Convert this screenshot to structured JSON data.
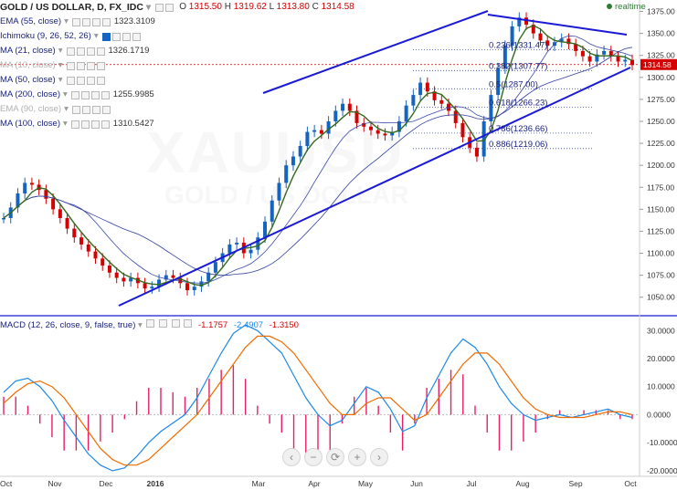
{
  "header": {
    "symbol": "GOLD / US DOLLAR, D, FX_IDC",
    "open_label": "O",
    "open": "1315.50",
    "high_label": "H",
    "high": "1319.62",
    "low_label": "L",
    "low": "1313.80",
    "close_label": "C",
    "close": "1314.58",
    "realtime": "realtime"
  },
  "indicators": [
    {
      "label": "EMA (55, close)",
      "value": "1323.3109",
      "dim": false
    },
    {
      "label": "Ichimoku (9, 26, 52, 26)",
      "value": "",
      "dim": false
    },
    {
      "label": "MA (21, close)",
      "value": "1326.1719",
      "dim": false
    },
    {
      "label": "MA (10, close)",
      "value": "",
      "dim": true
    },
    {
      "label": "MA (50, close)",
      "value": "",
      "dim": false
    },
    {
      "label": "MA (200, close)",
      "value": "1255.9985",
      "dim": false
    },
    {
      "label": "EMA (90, close)",
      "value": "",
      "dim": true
    },
    {
      "label": "MA (100, close)",
      "value": "1310.5427",
      "dim": false
    }
  ],
  "macd": {
    "label": "MACD (12, 26, close, 9, false, true)",
    "v1": "-1.1757",
    "v2": "-2.4907",
    "v3": "-1.3150"
  },
  "watermark": {
    "main": "XAUUSD",
    "sub": "GOLD / US DOLLAR"
  },
  "nav": [
    "‹",
    "−",
    "⟳",
    "+",
    "›"
  ],
  "colors": {
    "up": "#1565c0",
    "down": "#d50000",
    "trend": "#1a1ad6",
    "ma21": "#33691e",
    "ma_long": "#3949ab",
    "macd": "#1e88e5",
    "signal": "#ef6c00",
    "hist": "#e91e63"
  },
  "chart_data": {
    "type": "line",
    "title": "GOLD / US DOLLAR, D, FX_IDC",
    "price_axis": {
      "ylim": [
        1030,
        1388
      ],
      "ticks": [
        1050,
        1075,
        1100,
        1125,
        1150,
        1175,
        1200,
        1225,
        1250,
        1275,
        1300,
        1325,
        1350,
        1375
      ],
      "current_price": "1314.58"
    },
    "x_ticks": [
      "Oct",
      "Nov",
      "Dec",
      "2016",
      "Mar",
      "Apr",
      "May",
      "Jun",
      "Jul",
      "Aug",
      "Sep",
      "Oct"
    ],
    "price_close": [
      1140,
      1152,
      1168,
      1180,
      1178,
      1172,
      1162,
      1150,
      1140,
      1128,
      1118,
      1110,
      1102,
      1094,
      1086,
      1078,
      1072,
      1068,
      1072,
      1066,
      1060,
      1062,
      1070,
      1075,
      1072,
      1066,
      1058,
      1062,
      1068,
      1078,
      1090,
      1100,
      1110,
      1112,
      1100,
      1104,
      1118,
      1136,
      1160,
      1180,
      1200,
      1210,
      1222,
      1238,
      1240,
      1236,
      1250,
      1262,
      1270,
      1262,
      1248,
      1244,
      1240,
      1236,
      1234,
      1238,
      1250,
      1268,
      1280,
      1294,
      1284,
      1274,
      1270,
      1262,
      1248,
      1232,
      1220,
      1210,
      1250,
      1280,
      1310,
      1336,
      1358,
      1368,
      1360,
      1350,
      1342,
      1336,
      1340,
      1344,
      1338,
      1330,
      1324,
      1318,
      1326,
      1330,
      1324,
      1318,
      1320,
      1314
    ],
    "fib_levels": [
      {
        "label": "0.236(1331.47)",
        "value": 1331.47
      },
      {
        "label": "0.382(1307.77)",
        "value": 1307.77
      },
      {
        "label": "0.5(1287.00)",
        "value": 1287.0
      },
      {
        "label": "0.618(1266.23)",
        "value": 1266.23
      },
      {
        "label": "0.786(1236.66)",
        "value": 1236.66
      },
      {
        "label": "0.886(1219.06)",
        "value": 1219.06
      }
    ],
    "macd_axis": {
      "ylim": [
        -22,
        34
      ],
      "ticks": [
        {
          "v": 30,
          "label": "30.0000"
        },
        {
          "v": 20,
          "label": "20.0000"
        },
        {
          "v": 10,
          "label": "10.0000"
        },
        {
          "v": 0,
          "label": "0.0000"
        },
        {
          "v": -10,
          "label": "-10.0000"
        },
        {
          "v": -20,
          "label": "-20.0000"
        }
      ]
    },
    "series": [
      {
        "name": "MACD",
        "values": [
          8,
          12,
          13,
          10,
          5,
          -2,
          -8,
          -14,
          -18,
          -20,
          -19,
          -15,
          -10,
          -6,
          -3,
          0,
          6,
          14,
          22,
          29,
          32,
          30,
          26,
          22,
          14,
          6,
          0,
          -4,
          -2,
          4,
          10,
          8,
          2,
          -6,
          -4,
          6,
          14,
          22,
          27,
          24,
          18,
          10,
          4,
          0,
          -2,
          -1,
          0,
          -1,
          0,
          1,
          2,
          0,
          -1
        ]
      },
      {
        "name": "Signal",
        "values": [
          4,
          8,
          11,
          12,
          10,
          6,
          0,
          -6,
          -12,
          -16,
          -18,
          -18,
          -16,
          -12,
          -8,
          -4,
          0,
          6,
          12,
          18,
          24,
          28,
          28,
          26,
          22,
          16,
          10,
          4,
          0,
          0,
          4,
          6,
          6,
          2,
          -2,
          0,
          6,
          12,
          18,
          22,
          22,
          18,
          12,
          6,
          2,
          0,
          -1,
          -1,
          -1,
          0,
          1,
          1,
          0
        ]
      }
    ]
  }
}
